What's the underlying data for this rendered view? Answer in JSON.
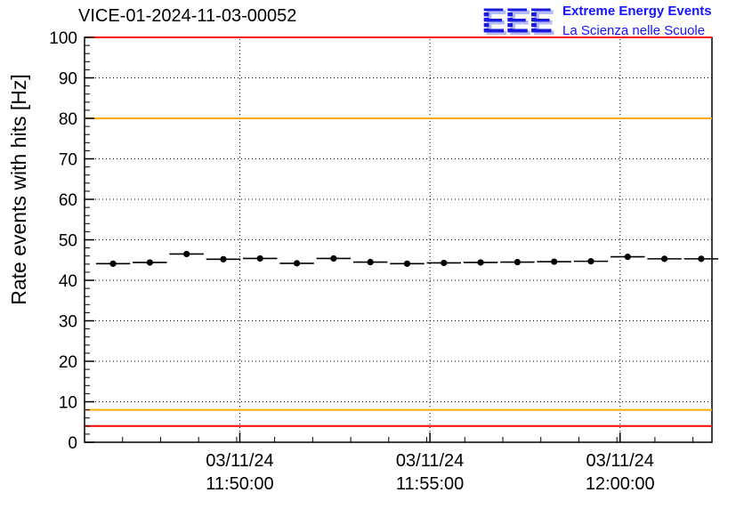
{
  "title": "VICE-01-2024-11-03-00052",
  "logo": {
    "acronym": "EEE",
    "line1": "Extreme Energy Events",
    "line2": "La Scienza nelle Scuole",
    "color": "#1b1be0"
  },
  "chart_data": {
    "type": "line",
    "title": "VICE-01-2024-11-03-00052",
    "xlabel": "",
    "ylabel": "Rate events with hits [Hz]",
    "ylim": [
      0,
      100
    ],
    "yticks": [
      0,
      10,
      20,
      30,
      40,
      50,
      60,
      70,
      80,
      90,
      100
    ],
    "grid": true,
    "xlim_seconds": [
      0,
      990
    ],
    "xticks": [
      {
        "t": 245,
        "label_date": "03/11/24",
        "label_time": "11:50:00"
      },
      {
        "t": 545,
        "label_date": "03/11/24",
        "label_time": "11:55:00"
      },
      {
        "t": 845,
        "label_date": "03/11/24",
        "label_time": "12:00:00"
      }
    ],
    "thresholds": [
      {
        "name": "alarm-high",
        "y": 100,
        "color": "#ff0000"
      },
      {
        "name": "warning-high",
        "y": 80,
        "color": "#ffaa00"
      },
      {
        "name": "warning-low",
        "y": 8,
        "color": "#ffaa00"
      },
      {
        "name": "alarm-low",
        "y": 4,
        "color": "#ff0000"
      }
    ],
    "series": [
      {
        "name": "rate-events-with-hits",
        "color": "#000000",
        "marker": "circle",
        "bin_halfwidth_seconds": 27,
        "points": [
          {
            "t": 45,
            "y": 44.1
          },
          {
            "t": 103,
            "y": 44.4
          },
          {
            "t": 161,
            "y": 46.5
          },
          {
            "t": 219,
            "y": 45.2
          },
          {
            "t": 277,
            "y": 45.4
          },
          {
            "t": 335,
            "y": 44.2
          },
          {
            "t": 393,
            "y": 45.4
          },
          {
            "t": 451,
            "y": 44.5
          },
          {
            "t": 509,
            "y": 44.1
          },
          {
            "t": 567,
            "y": 44.3
          },
          {
            "t": 625,
            "y": 44.4
          },
          {
            "t": 683,
            "y": 44.5
          },
          {
            "t": 741,
            "y": 44.6
          },
          {
            "t": 799,
            "y": 44.7
          },
          {
            "t": 857,
            "y": 45.8
          },
          {
            "t": 915,
            "y": 45.3
          },
          {
            "t": 973,
            "y": 45.3
          }
        ]
      }
    ]
  }
}
